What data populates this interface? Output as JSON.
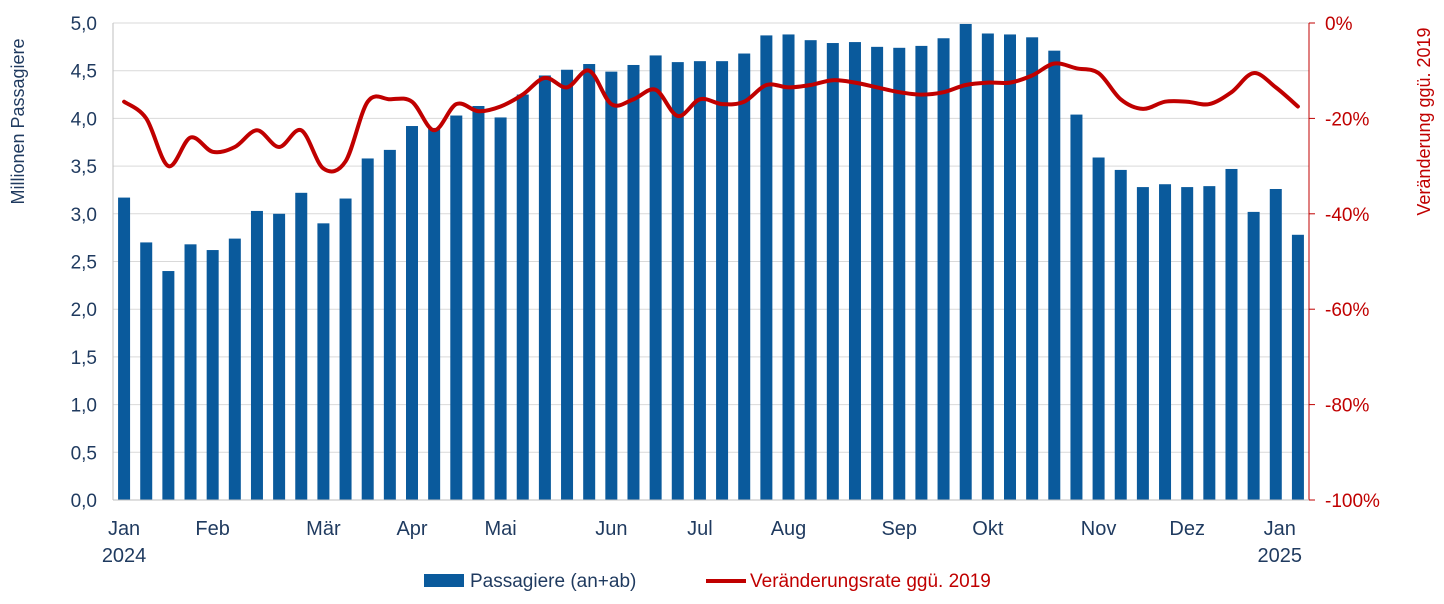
{
  "chart_data": {
    "type": "bar",
    "y_left_label": "Millionen Passagiere",
    "y_right_label": "Veränderung ggü. 2019",
    "y_left_range": [
      0,
      5
    ],
    "y_right_range": [
      -100,
      0
    ],
    "y_left_ticks": [
      "0,0",
      "0,5",
      "1,0",
      "1,5",
      "2,0",
      "2,5",
      "3,0",
      "3,5",
      "4,0",
      "4,5",
      "5,0"
    ],
    "y_right_ticks": [
      "-100%",
      "-80%",
      "-60%",
      "-40%",
      "-20%",
      "0%"
    ],
    "grid": true,
    "legend_position": "bottom",
    "x_labels": [
      {
        "label": "Jan",
        "sub": "2024",
        "week": 0
      },
      {
        "label": "Feb",
        "sub": "",
        "week": 4
      },
      {
        "label": "Mär",
        "sub": "",
        "week": 9
      },
      {
        "label": "Apr",
        "sub": "",
        "week": 13
      },
      {
        "label": "Mai",
        "sub": "",
        "week": 17
      },
      {
        "label": "Jun",
        "sub": "",
        "week": 22
      },
      {
        "label": "Jul",
        "sub": "",
        "week": 26
      },
      {
        "label": "Aug",
        "sub": "",
        "week": 30
      },
      {
        "label": "Sep",
        "sub": "",
        "week": 35
      },
      {
        "label": "Okt",
        "sub": "",
        "week": 39
      },
      {
        "label": "Nov",
        "sub": "",
        "week": 44
      },
      {
        "label": "Dez",
        "sub": "",
        "week": 48
      },
      {
        "label": "Jan",
        "sub": "2025",
        "week": 52
      }
    ],
    "series": [
      {
        "name": "Passagiere (an+ab)",
        "type": "bar",
        "axis": "left",
        "color": "#0a5a9c",
        "values": [
          3.17,
          2.7,
          2.4,
          2.68,
          2.62,
          2.74,
          3.03,
          3.0,
          3.22,
          2.9,
          3.16,
          3.58,
          3.67,
          3.92,
          3.9,
          4.03,
          4.13,
          4.01,
          4.25,
          4.45,
          4.51,
          4.57,
          4.49,
          4.56,
          4.66,
          4.59,
          4.6,
          4.6,
          4.68,
          4.87,
          4.88,
          4.82,
          4.79,
          4.8,
          4.75,
          4.74,
          4.76,
          4.84,
          4.99,
          4.89,
          4.88,
          4.85,
          4.71,
          4.04,
          3.59,
          3.46,
          3.28,
          3.31,
          3.28,
          3.29,
          3.47,
          3.02,
          3.26,
          2.78
        ]
      },
      {
        "name": "Veränderungsrate ggü. 2019",
        "type": "line",
        "axis": "right",
        "color": "#c00000",
        "values": [
          -16.5,
          -20,
          -30,
          -24,
          -27,
          -26,
          -22.5,
          -26,
          -22.5,
          -30.5,
          -29,
          -16.5,
          -16,
          -16.5,
          -22.5,
          -17,
          -18.5,
          -17.5,
          -15,
          -11.5,
          -13.5,
          -10,
          -17,
          -16,
          -14,
          -19.5,
          -16,
          -17,
          -16.5,
          -13,
          -13.5,
          -13,
          -12,
          -12.5,
          -13.5,
          -14.5,
          -15,
          -14.5,
          -13,
          -12.5,
          -12.5,
          -11,
          -8.5,
          -9.5,
          -10.5,
          -16,
          -18,
          -16.5,
          -16.5,
          -17,
          -14.5,
          -10.5,
          -13.5,
          -17.5
        ]
      }
    ]
  }
}
